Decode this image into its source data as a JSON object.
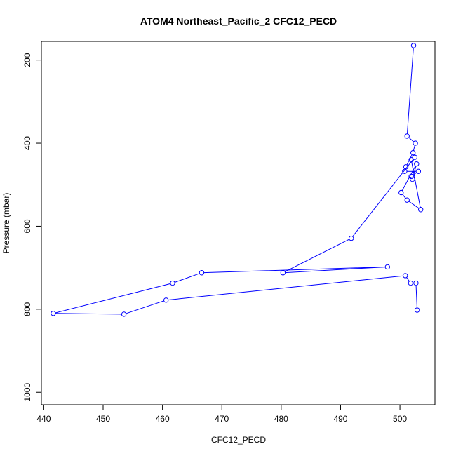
{
  "chart_data": {
    "type": "line",
    "title": "ATOM4 Northeast_Pacific_2 CFC12_PECD",
    "xlabel": "CFC12_PECD",
    "ylabel": "Pressure (mbar)",
    "xlim": [
      439.6,
      505.9
    ],
    "ylim": [
      1030,
      155
    ],
    "y_reversed": true,
    "x_ticks": [
      "440",
      "450",
      "460",
      "470",
      "480",
      "490",
      "500"
    ],
    "y_ticks": [
      "200",
      "400",
      "600",
      "800",
      "1000"
    ],
    "grid": false,
    "series": [
      {
        "color": "#0000ff",
        "x": [
          502.3,
          501.2,
          502.6,
          502.2,
          501.0,
          500.8,
          503.1,
          501.9,
          502.1,
          502.8,
          500.2,
          501.2,
          503.5,
          501.9,
          502.5,
          491.8,
          480.3,
          497.9,
          466.6,
          461.7,
          441.6,
          453.5,
          460.6,
          500.9,
          501.8,
          502.7,
          502.9
        ],
        "y": [
          165,
          383,
          400,
          423,
          457,
          468,
          468,
          480,
          487,
          450,
          519,
          537,
          560,
          440,
          434,
          629,
          712,
          698,
          712,
          737,
          810,
          812,
          778,
          719,
          737,
          737,
          802
        ]
      }
    ]
  }
}
